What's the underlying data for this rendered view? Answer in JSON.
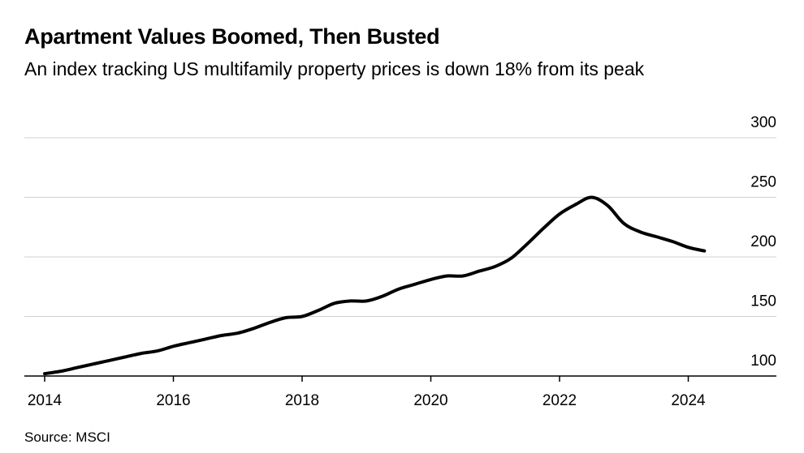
{
  "header": {
    "title": "Apartment Values Boomed, Then Busted",
    "subtitle": "An index tracking US multifamily property prices is down 18% from its peak"
  },
  "footer": {
    "source": "Source: MSCI"
  },
  "chart_data": {
    "type": "line",
    "title": "Apartment Values Boomed, Then Busted",
    "subtitle": "An index tracking US multifamily property prices is down 18% from its peak",
    "xlabel": "",
    "ylabel": "",
    "xlim": [
      2014,
      2025.35
    ],
    "ylim": [
      100,
      300
    ],
    "x_ticks": [
      2014,
      2016,
      2018,
      2020,
      2022,
      2024
    ],
    "y_ticks": [
      100,
      150,
      200,
      250,
      300
    ],
    "y_axis_side": "right",
    "grid": "horizontal",
    "series_color": "#000000",
    "series": [
      {
        "x": [
          2014.0,
          2014.25,
          2014.5,
          2014.75,
          2015.0,
          2015.25,
          2015.5,
          2015.75,
          2016.0,
          2016.25,
          2016.5,
          2016.75,
          2017.0,
          2017.25,
          2017.5,
          2017.75,
          2018.0,
          2018.25,
          2018.5,
          2018.75,
          2019.0,
          2019.25,
          2019.5,
          2019.75,
          2020.0,
          2020.25,
          2020.5,
          2020.75,
          2021.0,
          2021.25,
          2021.5,
          2021.75,
          2022.0,
          2022.25,
          2022.5,
          2022.75,
          2023.0,
          2023.25,
          2023.5,
          2023.75,
          2024.0,
          2024.25
        ],
        "values": [
          102,
          104,
          107,
          110,
          113,
          116,
          119,
          121,
          125,
          128,
          131,
          134,
          136,
          140,
          145,
          149,
          150,
          155,
          161,
          163,
          163,
          167,
          173,
          177,
          181,
          184,
          184,
          188,
          192,
          199,
          211,
          224,
          236,
          244,
          250,
          243,
          228,
          221,
          217,
          213,
          208,
          205
        ]
      }
    ]
  }
}
